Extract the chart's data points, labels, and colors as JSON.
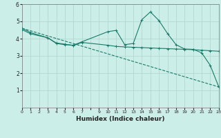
{
  "xlabel": "Humidex (Indice chaleur)",
  "bg_color": "#cceee8",
  "grid_color": "#aad4cc",
  "line_color": "#1a7a6a",
  "ylim": [
    0,
    6
  ],
  "xlim": [
    0,
    23
  ],
  "yticks": [
    1,
    2,
    3,
    4,
    5,
    6
  ],
  "xtick_labels": [
    "0",
    "1",
    "2",
    "3",
    "4",
    "5",
    "6",
    "7",
    "",
    "9",
    "10",
    "11",
    "12",
    "13",
    "14",
    "15",
    "16",
    "17",
    "18",
    "19",
    "20",
    "21",
    "22",
    "23"
  ],
  "line1_x": [
    0,
    1,
    3,
    4,
    5,
    6,
    7,
    10,
    11,
    12,
    13,
    14,
    15,
    16,
    17,
    18,
    19,
    20,
    21,
    22,
    23
  ],
  "line1_y": [
    4.6,
    4.35,
    4.05,
    3.72,
    3.65,
    3.62,
    3.82,
    4.4,
    4.48,
    3.65,
    3.72,
    5.1,
    5.55,
    5.05,
    4.3,
    3.65,
    3.4,
    3.38,
    3.18,
    2.45,
    1.2
  ],
  "line2_x": [
    0,
    23
  ],
  "line2_y": [
    4.6,
    1.2
  ],
  "line3_x": [
    0,
    1,
    3,
    4,
    5,
    6,
    7,
    10,
    11,
    12,
    13,
    14,
    15,
    16,
    17,
    18,
    19,
    20,
    21,
    22,
    23
  ],
  "line3_y": [
    4.52,
    4.28,
    4.05,
    3.75,
    3.68,
    3.6,
    3.78,
    3.62,
    3.55,
    3.52,
    3.5,
    3.48,
    3.46,
    3.44,
    3.42,
    3.4,
    3.38,
    3.36,
    3.33,
    3.3,
    3.27
  ]
}
